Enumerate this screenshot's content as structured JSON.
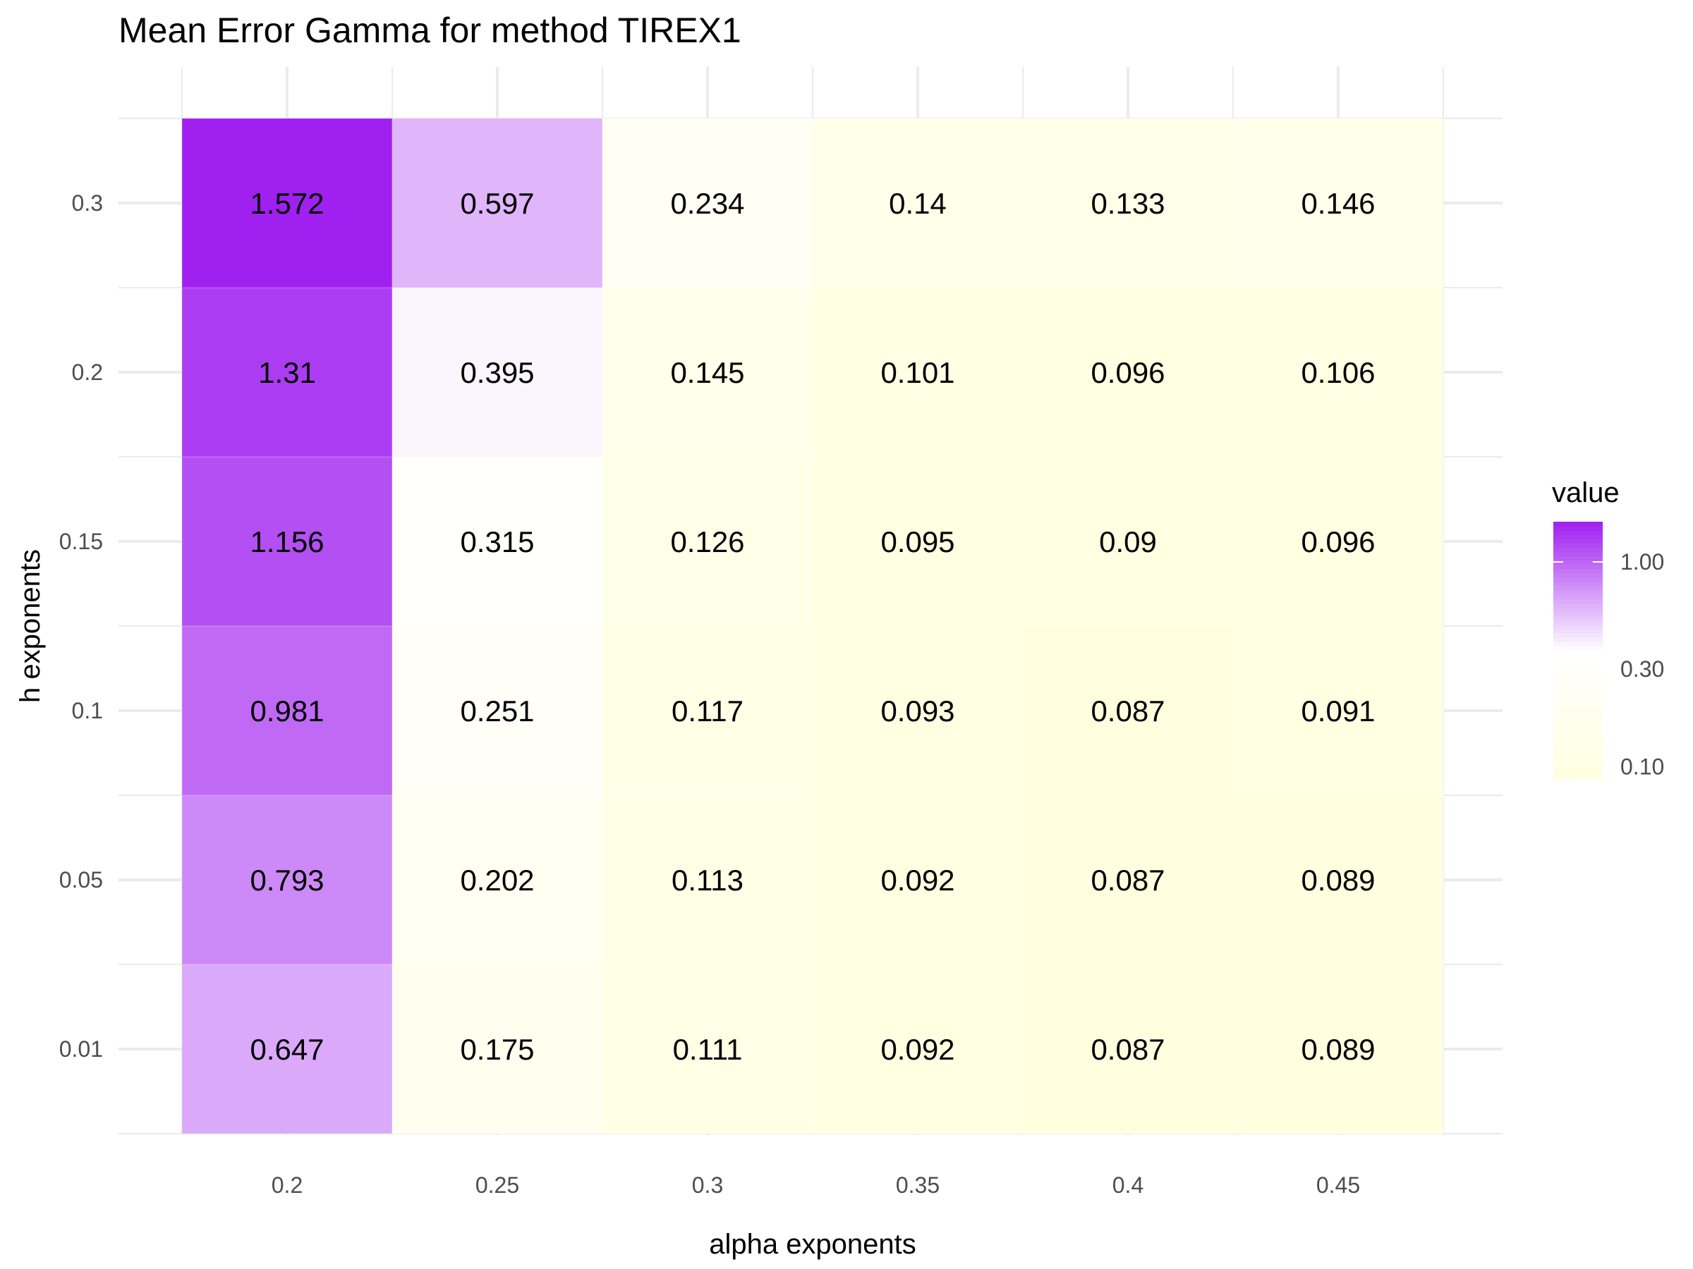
{
  "chart_data": {
    "type": "heatmap",
    "title": "Mean Error Gamma for method TIREX1",
    "xlabel": "alpha exponents",
    "ylabel": "h exponents",
    "x": [
      "0.2",
      "0.25",
      "0.3",
      "0.35",
      "0.4",
      "0.45"
    ],
    "y": [
      "0.01",
      "0.05",
      "0.1",
      "0.15",
      "0.2",
      "0.3"
    ],
    "values": [
      [
        "0.647",
        "0.175",
        "0.111",
        "0.092",
        "0.087",
        "0.089"
      ],
      [
        "0.793",
        "0.202",
        "0.113",
        "0.092",
        "0.087",
        "0.089"
      ],
      [
        "0.981",
        "0.251",
        "0.117",
        "0.093",
        "0.087",
        "0.091"
      ],
      [
        "1.156",
        "0.315",
        "0.126",
        "0.095",
        "0.09",
        "0.096"
      ],
      [
        "1.31",
        "0.395",
        "0.145",
        "0.101",
        "0.096",
        "0.106"
      ],
      [
        "1.572",
        "0.597",
        "0.234",
        "0.14",
        "0.133",
        "0.146"
      ]
    ],
    "color_scale": {
      "scale": "log",
      "low_color": "#FFFFE0",
      "mid_color": "#FFFFFF",
      "high_color": "#A020F0",
      "range": [
        0.087,
        1.572
      ]
    },
    "legend": {
      "title": "value",
      "position": "right",
      "breaks": [
        "1.00",
        "0.30",
        "0.10"
      ]
    },
    "grid": true
  }
}
